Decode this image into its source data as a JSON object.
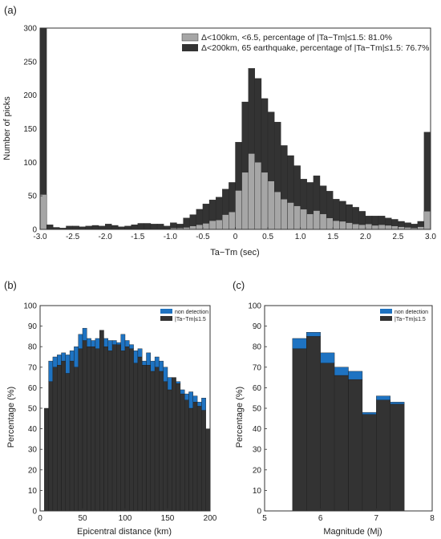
{
  "chart_data": [
    {
      "panel": "(a)",
      "type": "bar",
      "xlabel": "Ta−Tm (sec)",
      "ylabel": "Number of picks",
      "xlim": [
        -3.0,
        3.0
      ],
      "ylim": [
        0,
        300
      ],
      "bin_width": 0.1,
      "xticks": [
        -3.0,
        -2.5,
        -2.0,
        -1.5,
        -1.0,
        -0.5,
        0,
        0.5,
        1.0,
        1.5,
        2.0,
        2.5,
        3.0
      ],
      "xtick_labels": [
        "-3.0",
        "-2.5",
        "-2.0",
        "-1.5",
        "-1.0",
        "-0.5",
        "0",
        "0.5",
        "1.0",
        "1.5",
        "2.0",
        "2.5",
        "3.0"
      ],
      "yticks": [
        0,
        50,
        100,
        150,
        200,
        250,
        300
      ],
      "legend_position": "top-right",
      "x": [
        -3.0,
        -2.9,
        -2.8,
        -2.7,
        -2.6,
        -2.5,
        -2.4,
        -2.3,
        -2.2,
        -2.1,
        -2.0,
        -1.9,
        -1.8,
        -1.7,
        -1.6,
        -1.5,
        -1.4,
        -1.3,
        -1.2,
        -1.1,
        -1.0,
        -0.9,
        -0.8,
        -0.7,
        -0.6,
        -0.5,
        -0.4,
        -0.3,
        -0.2,
        -0.1,
        0.0,
        0.1,
        0.2,
        0.3,
        0.4,
        0.5,
        0.6,
        0.7,
        0.8,
        0.9,
        1.0,
        1.1,
        1.2,
        1.3,
        1.4,
        1.5,
        1.6,
        1.7,
        1.8,
        1.9,
        2.0,
        2.1,
        2.2,
        2.3,
        2.4,
        2.5,
        2.6,
        2.7,
        2.8,
        2.9
      ],
      "series": [
        {
          "name": "Δ<200km, 65 earthquake, percentage of |Ta−Tm|≤1.5: 76.7%",
          "color": "#333333",
          "values": [
            300,
            7,
            3,
            2,
            5,
            5,
            4,
            5,
            6,
            5,
            8,
            6,
            4,
            5,
            7,
            9,
            9,
            8,
            8,
            5,
            10,
            8,
            17,
            22,
            30,
            38,
            44,
            48,
            60,
            70,
            130,
            190,
            240,
            225,
            195,
            175,
            160,
            125,
            110,
            95,
            75,
            70,
            80,
            65,
            57,
            45,
            42,
            37,
            33,
            27,
            20,
            20,
            20,
            17,
            15,
            12,
            10,
            8,
            12,
            145
          ]
        },
        {
          "name": "Δ<100km, <6.5, percentage of |Ta−Tm|≤1.5: 81.0%",
          "color": "#a6a6a6",
          "values": [
            52,
            0,
            0,
            0,
            0,
            0,
            0,
            0,
            0,
            0,
            0,
            0,
            0,
            0,
            0,
            0,
            0,
            0,
            0,
            0,
            2,
            2,
            3,
            5,
            7,
            9,
            13,
            14,
            22,
            26,
            58,
            85,
            113,
            100,
            85,
            72,
            56,
            45,
            40,
            35,
            30,
            23,
            28,
            23,
            17,
            13,
            12,
            10,
            8,
            7,
            8,
            6,
            7,
            6,
            5,
            4,
            3,
            2,
            4,
            27
          ]
        }
      ]
    },
    {
      "panel": "(b)",
      "type": "bar",
      "xlabel": "Epicentral distance (km)",
      "ylabel": "Percentage (%)",
      "xlim": [
        0,
        200
      ],
      "ylim": [
        0,
        100
      ],
      "bin_width": 5,
      "xticks": [
        0,
        50,
        100,
        150,
        200
      ],
      "yticks": [
        0,
        10,
        20,
        30,
        40,
        50,
        60,
        70,
        80,
        90,
        100
      ],
      "legend_position": "top-right",
      "x": [
        5,
        10,
        15,
        20,
        25,
        30,
        35,
        40,
        45,
        50,
        55,
        60,
        65,
        70,
        75,
        80,
        85,
        90,
        95,
        100,
        105,
        110,
        115,
        120,
        125,
        130,
        135,
        140,
        145,
        150,
        155,
        160,
        165,
        170,
        175,
        180,
        185,
        190,
        195
      ],
      "series": [
        {
          "name": "|Ta−Tm|≤1.5",
          "color": "#333333",
          "values": [
            50,
            63,
            70,
            71,
            73,
            67,
            73,
            70,
            79,
            83,
            80,
            80,
            79,
            88,
            80,
            78,
            81,
            81,
            78,
            80,
            79,
            72,
            75,
            71,
            71,
            68,
            70,
            68,
            63,
            59,
            65,
            62,
            57,
            54,
            50,
            53,
            51,
            49,
            40
          ]
        },
        {
          "name": "non detection",
          "color": "#1e73c2",
          "values": [
            0,
            10,
            5,
            5,
            4,
            9,
            5,
            10,
            7,
            6,
            4,
            3,
            5,
            0,
            4,
            5,
            2,
            1,
            8,
            3,
            2,
            6,
            4,
            2,
            6,
            5,
            5,
            5,
            7,
            6,
            0,
            1,
            2,
            3,
            8,
            3,
            2,
            6,
            0
          ]
        }
      ]
    },
    {
      "panel": "(c)",
      "type": "bar",
      "xlabel": "Magnitude (Mj)",
      "ylabel": "Percentage (%)",
      "xlim": [
        5,
        8
      ],
      "ylim": [
        0,
        100
      ],
      "bin_width": 0.25,
      "xticks": [
        5,
        6,
        7,
        8
      ],
      "yticks": [
        0,
        10,
        20,
        30,
        40,
        50,
        60,
        70,
        80,
        90,
        100
      ],
      "legend_position": "top-right",
      "x": [
        5.5,
        5.75,
        6.0,
        6.25,
        6.5,
        6.75,
        7.0,
        7.25
      ],
      "series": [
        {
          "name": "|Ta−Tm|≤1.5",
          "color": "#333333",
          "values": [
            79,
            85,
            72,
            66,
            64,
            47,
            54,
            52
          ]
        },
        {
          "name": "non detection",
          "color": "#1e73c2",
          "values": [
            5,
            2,
            5,
            4,
            4,
            1,
            2,
            1
          ]
        }
      ]
    }
  ]
}
